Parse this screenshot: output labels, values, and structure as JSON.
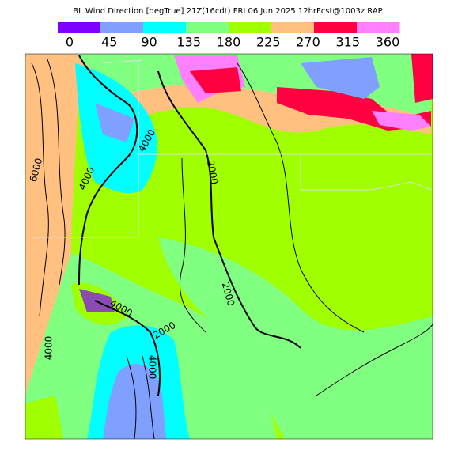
{
  "header": {
    "title": "BL Wind Direction [degTrue] 21Z(16cdt) FRI 06 Jun 2025 12hrFcst@1003z RAP"
  },
  "colorbar": {
    "ticks": [
      0,
      45,
      90,
      135,
      180,
      225,
      270,
      315,
      360
    ],
    "colors": [
      "#8000ff",
      "#7fa0ff",
      "#00ffff",
      "#80ff80",
      "#a0ff00",
      "#ffc080",
      "#ff0040",
      "#ff80ff"
    ]
  },
  "map": {
    "contour_labels": [
      "6000",
      "4000",
      "4000",
      "2000",
      "2000",
      "4000",
      "2000",
      "4000",
      "4000"
    ]
  }
}
